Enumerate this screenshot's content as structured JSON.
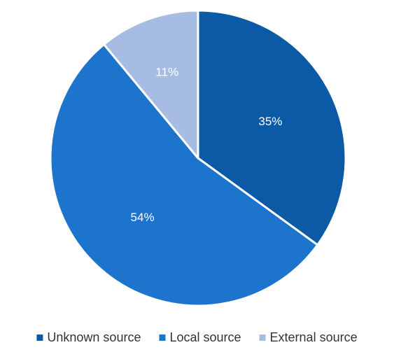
{
  "chart_data": {
    "type": "pie",
    "title": "",
    "slices": [
      {
        "label": "Unknown source",
        "value": 35,
        "display": "35%",
        "color": "#0c5aa6"
      },
      {
        "label": "Local source",
        "value": 54,
        "display": "54%",
        "color": "#1c74cc"
      },
      {
        "label": "External source",
        "value": 11,
        "display": "11%",
        "color": "#a7bce2"
      }
    ],
    "start_angle_deg": 0,
    "direction": "clockwise",
    "separator_color": "#ffffff",
    "legend_position": "bottom"
  }
}
